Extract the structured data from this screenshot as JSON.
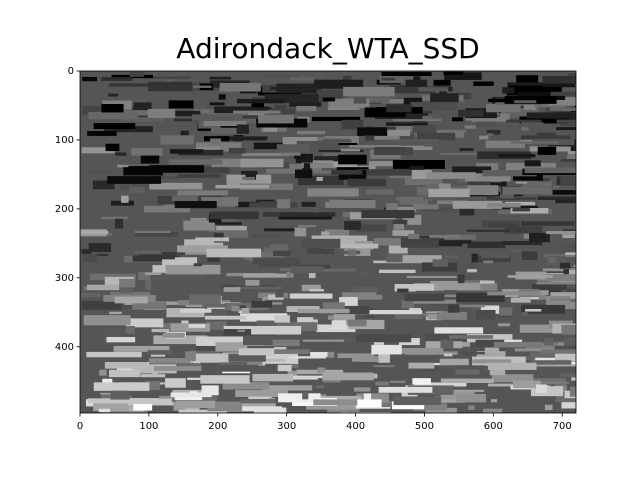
{
  "chart_data": {
    "type": "image",
    "title": "Adirondack_WTA_SSD",
    "colormap": "gray",
    "xlim": [
      0,
      720
    ],
    "xticks": [
      0,
      100,
      200,
      300,
      400,
      500,
      600,
      700
    ],
    "ylim": [
      496,
      0
    ],
    "yticks": [
      0,
      100,
      200,
      300,
      400
    ]
  }
}
